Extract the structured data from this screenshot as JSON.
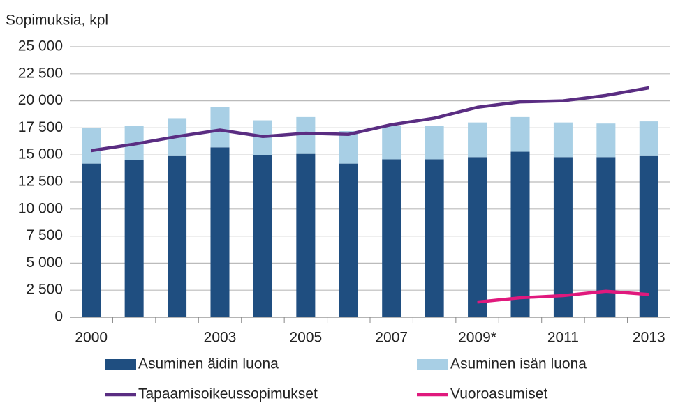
{
  "chart_data": {
    "type": "bar",
    "stacked": true,
    "y_axis_label": "Sopimuksia, kpl",
    "categories": [
      "2000",
      null,
      null,
      "2003",
      null,
      "2005",
      null,
      "2007",
      null,
      "2009*",
      null,
      "2011",
      null,
      "2013"
    ],
    "series": [
      {
        "name": "Asuminen äidin luona",
        "type": "bar",
        "color": "#1f4e80",
        "values": [
          14200,
          14500,
          14900,
          15700,
          15000,
          15100,
          14200,
          14600,
          14600,
          14800,
          15300,
          14800,
          14800,
          14900
        ]
      },
      {
        "name": "Asuminen isän luona",
        "type": "bar",
        "color": "#a8cfe5",
        "values": [
          3300,
          3200,
          3500,
          3700,
          3200,
          3400,
          3000,
          3100,
          3100,
          3200,
          3200,
          3200,
          3100,
          3200
        ]
      },
      {
        "name": "Tapaamisoikeussopimukset",
        "type": "line",
        "color": "#5a2d82",
        "values": [
          15400,
          16000,
          16700,
          17300,
          16700,
          17000,
          16900,
          17800,
          18400,
          19400,
          19900,
          20000,
          20500,
          21200
        ]
      },
      {
        "name": "Vuoroasumiset",
        "type": "line",
        "color": "#e0197d",
        "values": [
          null,
          null,
          null,
          null,
          null,
          null,
          null,
          null,
          null,
          1400,
          1800,
          2000,
          2400,
          2100
        ]
      }
    ],
    "ylim": [
      0,
      25000
    ],
    "yticks": [
      0,
      {
        "value": 2500,
        "label": "2 500"
      },
      {
        "value": 5000,
        "label": "5 000"
      },
      {
        "value": 7500,
        "label": "7 500"
      },
      {
        "value": 10000,
        "label": "10 000"
      },
      {
        "value": 12500,
        "label": "12 500"
      },
      {
        "value": 15000,
        "label": "15 000"
      },
      {
        "value": 17500,
        "label": "17 500"
      },
      {
        "value": 20000,
        "label": "20 000"
      },
      {
        "value": 22500,
        "label": "22 500"
      },
      {
        "value": 25000,
        "label": "25 000"
      }
    ],
    "grid": true
  }
}
